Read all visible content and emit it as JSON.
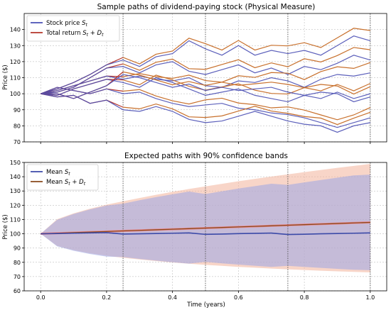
{
  "chart_data": [
    {
      "type": "line",
      "title": "Sample paths of dividend-paying stock (Physical Measure)",
      "xlabel": "",
      "ylabel": "Price ($)",
      "xlim": [
        -0.05,
        1.05
      ],
      "ylim": [
        70,
        150
      ],
      "yticks": [
        70,
        80,
        90,
        100,
        110,
        120,
        130,
        140
      ],
      "xticks": [
        0.0,
        0.2,
        0.4,
        0.6,
        0.8,
        1.0
      ],
      "show_xtick_labels": false,
      "grid": true,
      "dividend_times": [
        0.25,
        0.5,
        0.75,
        1.0
      ],
      "legend": {
        "placement": "top-left",
        "entries": [
          {
            "label_main": "Stock price ",
            "label_math": "S",
            "label_sub": "t",
            "label_rest": "",
            "color": "#4a4fb4"
          },
          {
            "label_main": "Total return ",
            "label_math": "S",
            "label_sub": "t",
            "label_rest": " + D",
            "label_sub2": "t",
            "color": "#b5342a"
          }
        ]
      },
      "colors": {
        "stock": "#4a4fb4",
        "total": "#b5342a",
        "total_late": "#c8702c"
      },
      "series": [
        {
          "x": [
            0,
            0.05,
            0.1,
            0.15,
            0.2,
            0.25,
            0.3,
            0.35,
            0.4,
            0.45,
            0.5,
            0.55,
            0.6,
            0.65,
            0.7,
            0.75,
            0.8,
            0.85,
            0.9,
            0.95,
            1.0
          ],
          "stock": [
            100,
            103,
            107,
            112,
            118,
            121,
            117,
            123,
            125,
            133,
            128,
            124,
            130,
            124,
            127,
            125,
            127,
            124,
            130,
            136,
            133
          ]
        },
        {
          "x": [
            0,
            0.05,
            0.1,
            0.15,
            0.2,
            0.25,
            0.3,
            0.35,
            0.4,
            0.45,
            0.5,
            0.55,
            0.6,
            0.65,
            0.7,
            0.75,
            0.8,
            0.85,
            0.9,
            0.95,
            1.0
          ],
          "stock": [
            100,
            101,
            104,
            110,
            116,
            117,
            113,
            118,
            120,
            114,
            112,
            115,
            118,
            113,
            116,
            112,
            117,
            115,
            119,
            124,
            121
          ]
        },
        {
          "x": [
            0,
            0.05,
            0.1,
            0.15,
            0.2,
            0.25,
            0.3,
            0.35,
            0.4,
            0.45,
            0.5,
            0.55,
            0.6,
            0.65,
            0.7,
            0.75,
            0.8,
            0.85,
            0.9,
            0.95,
            1.0
          ],
          "stock": [
            100,
            102,
            105,
            108,
            111,
            109,
            111,
            109,
            108,
            110,
            105,
            104,
            108,
            107,
            110,
            108,
            104,
            109,
            112,
            111,
            113
          ]
        },
        {
          "x": [
            0,
            0.05,
            0.1,
            0.15,
            0.2,
            0.25,
            0.3,
            0.35,
            0.4,
            0.45,
            0.5,
            0.55,
            0.6,
            0.65,
            0.7,
            0.75,
            0.8,
            0.85,
            0.9,
            0.95,
            1.0
          ],
          "stock": [
            100,
            99,
            103,
            106,
            109,
            107,
            104,
            110,
            107,
            103,
            99,
            101,
            103,
            99,
            97,
            95,
            99,
            97,
            101,
            97,
            100
          ]
        },
        {
          "x": [
            0,
            0.05,
            0.1,
            0.15,
            0.2,
            0.25,
            0.3,
            0.35,
            0.4,
            0.45,
            0.5,
            0.55,
            0.6,
            0.65,
            0.7,
            0.75,
            0.8,
            0.85,
            0.9,
            0.95,
            1.0
          ],
          "stock": [
            100,
            104,
            102,
            100,
            103,
            100,
            101,
            97,
            94,
            92,
            93,
            94,
            91,
            90,
            88,
            87,
            85,
            82,
            79,
            82,
            85
          ]
        },
        {
          "x": [
            0,
            0.05,
            0.1,
            0.15,
            0.2,
            0.25,
            0.3,
            0.35,
            0.4,
            0.45,
            0.5,
            0.55,
            0.6,
            0.65,
            0.7,
            0.75,
            0.8,
            0.85,
            0.9,
            0.95,
            1.0
          ],
          "stock": [
            100,
            98,
            99,
            94,
            96,
            90,
            89,
            92,
            89,
            84,
            82,
            83,
            86,
            89,
            86,
            83,
            81,
            80,
            76,
            80,
            82
          ]
        },
        {
          "x": [
            0,
            0.05,
            0.1,
            0.15,
            0.2,
            0.25,
            0.3,
            0.35,
            0.4,
            0.45,
            0.5,
            0.55,
            0.6,
            0.65,
            0.7,
            0.75,
            0.8,
            0.85,
            0.9,
            0.95,
            1.0
          ],
          "stock": [
            100,
            100,
            97,
            101,
            105,
            112,
            110,
            107,
            104,
            106,
            102,
            104,
            102,
            103,
            104,
            101,
            99,
            101,
            100,
            95,
            98
          ]
        }
      ]
    },
    {
      "type": "area",
      "title": "Expected paths with 90% confidence bands",
      "xlabel": "Time (years)",
      "ylabel": "Price ($)",
      "xlim": [
        -0.05,
        1.05
      ],
      "ylim": [
        60,
        150
      ],
      "yticks": [
        60,
        70,
        80,
        90,
        100,
        110,
        120,
        130,
        140,
        150
      ],
      "xticks": [
        0.0,
        0.2,
        0.4,
        0.6,
        0.8,
        1.0
      ],
      "xtick_labels": [
        "0.0",
        "0.2",
        "0.4",
        "0.6",
        "0.8",
        "1.0"
      ],
      "grid": true,
      "dividend_times": [
        0.25,
        0.5,
        0.75,
        1.0
      ],
      "legend": {
        "placement": "top-left",
        "entries": [
          {
            "label_main": "Mean ",
            "label_math": "S",
            "label_sub": "t",
            "label_rest": "",
            "color": "#3b4aa8"
          },
          {
            "label_main": "Mean ",
            "label_math": "S",
            "label_sub": "t",
            "label_rest": " + D",
            "label_sub2": "t",
            "color": "#8a4a1c"
          }
        ]
      },
      "colors": {
        "mean_stock": "#3b4aa8",
        "mean_total": "#8a4a1c",
        "total_line": "#ff6b6b",
        "band_stock": "#9aa6e6",
        "band_total": "#f2b29a"
      },
      "x": [
        0,
        0.05,
        0.1,
        0.15,
        0.2,
        0.25,
        0.3,
        0.35,
        0.4,
        0.45,
        0.5,
        0.55,
        0.6,
        0.65,
        0.7,
        0.75,
        0.8,
        0.85,
        0.9,
        0.95,
        1.0
      ],
      "mean_stock": [
        100,
        100.2,
        100.4,
        100.6,
        100.8,
        101.0,
        101.2,
        101.4,
        101.6,
        101.8,
        102.0,
        102.2,
        102.5,
        102.7,
        102.9,
        103.1,
        103.3,
        103.6,
        103.8,
        104.0,
        104.2
      ],
      "mean_total": [
        100,
        100.4,
        100.8,
        101.2,
        101.6,
        102.0,
        102.4,
        102.8,
        103.2,
        103.6,
        104.0,
        104.4,
        104.8,
        105.2,
        105.6,
        106.0,
        106.4,
        106.8,
        107.2,
        107.6,
        108.0
      ],
      "stock_upper": [
        100,
        109.8,
        113.9,
        117.1,
        119.8,
        121.1,
        123.5,
        125.7,
        127.7,
        129.6,
        127.9,
        129.8,
        131.7,
        133.4,
        135.1,
        134.3,
        136.0,
        137.7,
        139.3,
        140.9,
        141.5
      ],
      "stock_lower": [
        100,
        91.2,
        88.1,
        85.8,
        84.0,
        83.7,
        82.4,
        81.2,
        80.1,
        79.1,
        80.3,
        79.3,
        78.4,
        77.6,
        76.8,
        77.5,
        76.8,
        76.1,
        75.4,
        74.8,
        74.5
      ],
      "total_upper": [
        100,
        110.2,
        114.3,
        117.6,
        120.4,
        122.8,
        125.1,
        127.3,
        129.4,
        131.4,
        133.2,
        135.0,
        136.8,
        138.5,
        140.1,
        141.7,
        143.2,
        144.7,
        146.2,
        147.6,
        149.0
      ],
      "total_lower": [
        100,
        91.5,
        88.5,
        86.3,
        84.6,
        83.2,
        82.0,
        80.9,
        79.9,
        79.0,
        78.2,
        77.5,
        76.8,
        76.2,
        75.6,
        75.1,
        74.6,
        74.1,
        73.7,
        73.3,
        72.9
      ]
    }
  ]
}
